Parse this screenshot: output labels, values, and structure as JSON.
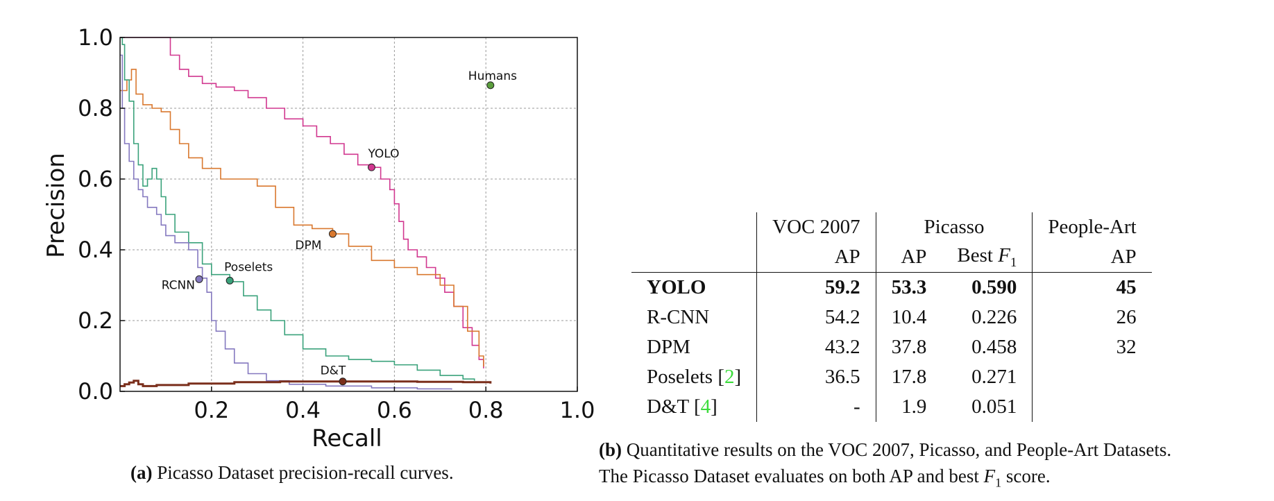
{
  "chart_data": {
    "type": "line",
    "xlabel": "Recall",
    "ylabel": "Precision",
    "xlim": [
      0,
      1
    ],
    "ylim": [
      0,
      1
    ],
    "x_ticks": [
      "0.2",
      "0.4",
      "0.6",
      "0.8",
      "1.0"
    ],
    "y_ticks": [
      "0.0",
      "0.2",
      "0.4",
      "0.6",
      "0.8",
      "1.0"
    ],
    "grid": true,
    "colors": {
      "yolo": "#d1378f",
      "dpm": "#d9782f",
      "poselets": "#3aa27b",
      "rcnn": "#8478bf",
      "dt": "#7a2e1b",
      "humans": "#5b9e3d"
    },
    "series": [
      {
        "name": "YOLO",
        "color": "#d1378f",
        "points": [
          [
            0.0,
            1.0
          ],
          [
            0.09,
            1.0
          ],
          [
            0.11,
            0.95
          ],
          [
            0.13,
            0.91
          ],
          [
            0.15,
            0.89
          ],
          [
            0.18,
            0.87
          ],
          [
            0.21,
            0.86
          ],
          [
            0.25,
            0.85
          ],
          [
            0.28,
            0.83
          ],
          [
            0.32,
            0.8
          ],
          [
            0.36,
            0.77
          ],
          [
            0.4,
            0.75
          ],
          [
            0.43,
            0.72
          ],
          [
            0.46,
            0.7
          ],
          [
            0.49,
            0.67
          ],
          [
            0.52,
            0.64
          ],
          [
            0.55,
            0.633
          ],
          [
            0.57,
            0.6
          ],
          [
            0.59,
            0.57
          ],
          [
            0.6,
            0.53
          ],
          [
            0.61,
            0.48
          ],
          [
            0.62,
            0.43
          ],
          [
            0.63,
            0.4
          ],
          [
            0.65,
            0.38
          ],
          [
            0.67,
            0.35
          ],
          [
            0.69,
            0.32
          ],
          [
            0.71,
            0.28
          ],
          [
            0.73,
            0.24
          ],
          [
            0.75,
            0.18
          ],
          [
            0.77,
            0.13
          ],
          [
            0.785,
            0.09
          ],
          [
            0.795,
            0.065
          ]
        ],
        "marker": [
          0.55,
          0.633
        ],
        "label": "YOLO"
      },
      {
        "name": "DPM",
        "color": "#d9782f",
        "points": [
          [
            0.0,
            0.85
          ],
          [
            0.015,
            0.88
          ],
          [
            0.025,
            0.91
          ],
          [
            0.035,
            0.84
          ],
          [
            0.05,
            0.81
          ],
          [
            0.07,
            0.8
          ],
          [
            0.09,
            0.79
          ],
          [
            0.11,
            0.74
          ],
          [
            0.13,
            0.7
          ],
          [
            0.15,
            0.66
          ],
          [
            0.18,
            0.63
          ],
          [
            0.22,
            0.6
          ],
          [
            0.26,
            0.6
          ],
          [
            0.3,
            0.58
          ],
          [
            0.34,
            0.52
          ],
          [
            0.38,
            0.47
          ],
          [
            0.42,
            0.46
          ],
          [
            0.465,
            0.445
          ],
          [
            0.5,
            0.41
          ],
          [
            0.55,
            0.37
          ],
          [
            0.6,
            0.35
          ],
          [
            0.65,
            0.33
          ],
          [
            0.7,
            0.3
          ],
          [
            0.73,
            0.24
          ],
          [
            0.76,
            0.17
          ],
          [
            0.785,
            0.1
          ],
          [
            0.795,
            0.07
          ]
        ],
        "marker": [
          0.465,
          0.445
        ],
        "label": "DPM"
      },
      {
        "name": "Poselets",
        "color": "#3aa27b",
        "points": [
          [
            0.0,
            1.0
          ],
          [
            0.005,
            0.98
          ],
          [
            0.01,
            0.88
          ],
          [
            0.02,
            0.82
          ],
          [
            0.03,
            0.7
          ],
          [
            0.04,
            0.64
          ],
          [
            0.05,
            0.58
          ],
          [
            0.06,
            0.6
          ],
          [
            0.07,
            0.63
          ],
          [
            0.08,
            0.6
          ],
          [
            0.09,
            0.55
          ],
          [
            0.1,
            0.5
          ],
          [
            0.12,
            0.45
          ],
          [
            0.15,
            0.42
          ],
          [
            0.18,
            0.36
          ],
          [
            0.2,
            0.33
          ],
          [
            0.24,
            0.31
          ],
          [
            0.27,
            0.27
          ],
          [
            0.3,
            0.23
          ],
          [
            0.33,
            0.2
          ],
          [
            0.36,
            0.16
          ],
          [
            0.4,
            0.12
          ],
          [
            0.45,
            0.1
          ],
          [
            0.5,
            0.09
          ],
          [
            0.55,
            0.085
          ],
          [
            0.6,
            0.075
          ],
          [
            0.65,
            0.06
          ],
          [
            0.7,
            0.045
          ],
          [
            0.75,
            0.035
          ],
          [
            0.775,
            0.03
          ]
        ],
        "marker": [
          0.24,
          0.313
        ],
        "label": "Poselets"
      },
      {
        "name": "RCNN",
        "color": "#8478bf",
        "points": [
          [
            0.0,
            0.95
          ],
          [
            0.005,
            0.8
          ],
          [
            0.01,
            0.7
          ],
          [
            0.02,
            0.65
          ],
          [
            0.03,
            0.6
          ],
          [
            0.04,
            0.57
          ],
          [
            0.05,
            0.55
          ],
          [
            0.06,
            0.52
          ],
          [
            0.07,
            0.52
          ],
          [
            0.08,
            0.5
          ],
          [
            0.09,
            0.47
          ],
          [
            0.1,
            0.44
          ],
          [
            0.12,
            0.42
          ],
          [
            0.15,
            0.4
          ],
          [
            0.17,
            0.35
          ],
          [
            0.18,
            0.32
          ],
          [
            0.19,
            0.28
          ],
          [
            0.2,
            0.2
          ],
          [
            0.21,
            0.17
          ],
          [
            0.23,
            0.12
          ],
          [
            0.25,
            0.08
          ],
          [
            0.28,
            0.05
          ],
          [
            0.32,
            0.03
          ],
          [
            0.37,
            0.02
          ],
          [
            0.45,
            0.015
          ],
          [
            0.55,
            0.01
          ],
          [
            0.65,
            0.007
          ],
          [
            0.725,
            0.005
          ]
        ],
        "marker": [
          0.173,
          0.317
        ],
        "label": "RCNN"
      },
      {
        "name": "D&T",
        "color": "#7a2e1b",
        "points": [
          [
            0.0,
            0.015
          ],
          [
            0.01,
            0.02
          ],
          [
            0.02,
            0.025
          ],
          [
            0.03,
            0.03
          ],
          [
            0.04,
            0.02
          ],
          [
            0.05,
            0.015
          ],
          [
            0.08,
            0.018
          ],
          [
            0.15,
            0.022
          ],
          [
            0.25,
            0.026
          ],
          [
            0.35,
            0.028
          ],
          [
            0.45,
            0.028
          ],
          [
            0.49,
            0.028
          ],
          [
            0.55,
            0.028
          ],
          [
            0.65,
            0.027
          ],
          [
            0.75,
            0.026
          ],
          [
            0.81,
            0.022
          ]
        ],
        "marker": [
          0.487,
          0.028
        ],
        "label": "D&T"
      },
      {
        "name": "Humans",
        "color": "#5b9e3d",
        "points": [],
        "marker": [
          0.81,
          0.865
        ],
        "label": "Humans"
      }
    ]
  },
  "captions": {
    "a_label": "(a)",
    "a_text": " Picasso Dataset precision-recall curves.",
    "b_label": "(b)",
    "b_text_line1": " Quantitative results on the VOC 2007, Picasso, and People-Art Datasets.",
    "b_text_line2_pre": "The Picasso Dataset evaluates on both AP and best ",
    "b_text_line2_post": " score."
  },
  "table": {
    "group_headers": [
      "VOC 2007",
      "Picasso",
      "People-Art"
    ],
    "sub_headers": [
      "AP",
      "AP",
      "Best",
      "AP"
    ],
    "f_symbol": "F",
    "f_subscript": "1",
    "rows": [
      {
        "method": "YOLO",
        "cite": "",
        "voc": "59.2",
        "picasso_ap": "53.3",
        "picasso_f1": "0.590",
        "people_art": "45"
      },
      {
        "method": "R-CNN",
        "cite": "",
        "voc": "54.2",
        "picasso_ap": "10.4",
        "picasso_f1": "0.226",
        "people_art": "26"
      },
      {
        "method": "DPM",
        "cite": "",
        "voc": "43.2",
        "picasso_ap": "37.8",
        "picasso_f1": "0.458",
        "people_art": "32"
      },
      {
        "method": "Poselets ",
        "cite": "2",
        "voc": "36.5",
        "picasso_ap": "17.8",
        "picasso_f1": "0.271",
        "people_art": ""
      },
      {
        "method": "D&T ",
        "cite": "4",
        "voc": "-",
        "picasso_ap": "1.9",
        "picasso_f1": "0.051",
        "people_art": ""
      }
    ]
  }
}
